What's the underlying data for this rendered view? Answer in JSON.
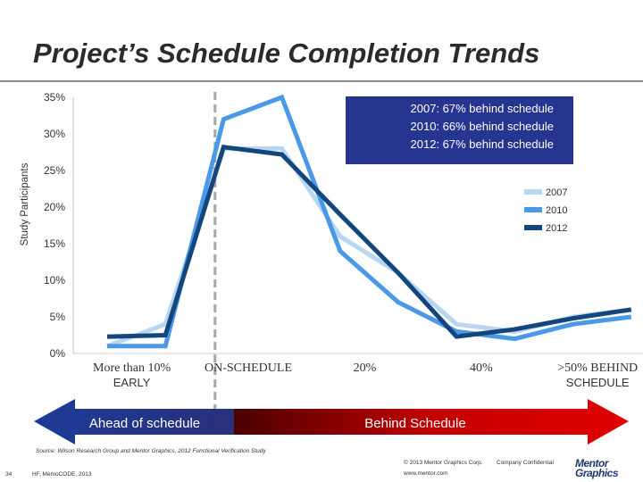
{
  "slide": {
    "title": "Project’s Schedule Completion Trends",
    "source": "Source: Wilson Research Group and Mentor Graphics, 2012 Functional Verification Study",
    "page_number": "34",
    "footer_left": "HF, MemoCODE, 2013",
    "copyright": "© 2013 Mentor Graphics Corp.",
    "confidential": "Company Confidential",
    "website": "www.mentor.com",
    "logo_line1": "Mentor",
    "logo_line2": "Graphics"
  },
  "colors": {
    "2007": "#b8d6f1",
    "2010": "#4a98e8",
    "2012": "#14467e",
    "note_box": "#26358f",
    "left_arrow": "#1f3f99",
    "right_arrow": "#d40000"
  },
  "chart_data": {
    "type": "line",
    "ylabel": "Study Participants",
    "ylim": [
      0,
      35
    ],
    "yticks": [
      "0%",
      "5%",
      "10%",
      "15%",
      "20%",
      "25%",
      "30%",
      "35%"
    ],
    "x_points": 10,
    "category_labels": [
      {
        "index": 0.5,
        "lines": [
          "More than 10%",
          "EARLY"
        ]
      },
      {
        "index": 2.5,
        "lines": [
          "ON-SCHEDULE"
        ]
      },
      {
        "index": 4.5,
        "lines": [
          "20%"
        ]
      },
      {
        "index": 6.5,
        "lines": [
          "40%"
        ]
      },
      {
        "index": 8.5,
        "lines": [
          ">50% BEHIND",
          "SCHEDULE"
        ]
      }
    ],
    "on_schedule_index": 2,
    "series": [
      {
        "name": "2007",
        "values": [
          1,
          4,
          28,
          28,
          16,
          11,
          4,
          3,
          5,
          6
        ]
      },
      {
        "name": "2010",
        "values": [
          1,
          1,
          32,
          35,
          14,
          7,
          3,
          2,
          4,
          5
        ]
      },
      {
        "name": "2012",
        "values": [
          2.3,
          2.5,
          28.2,
          27.2,
          19,
          11,
          2.3,
          3.3,
          4.8,
          6
        ]
      }
    ],
    "legend": [
      "2007",
      "2010",
      "2012"
    ],
    "legend_position": "right",
    "note_lines": [
      "2007: 67% behind schedule",
      "2010: 66% behind schedule",
      "2012: 67% behind schedule"
    ],
    "arrows": {
      "left": "Ahead of schedule",
      "right": "Behind Schedule"
    }
  }
}
